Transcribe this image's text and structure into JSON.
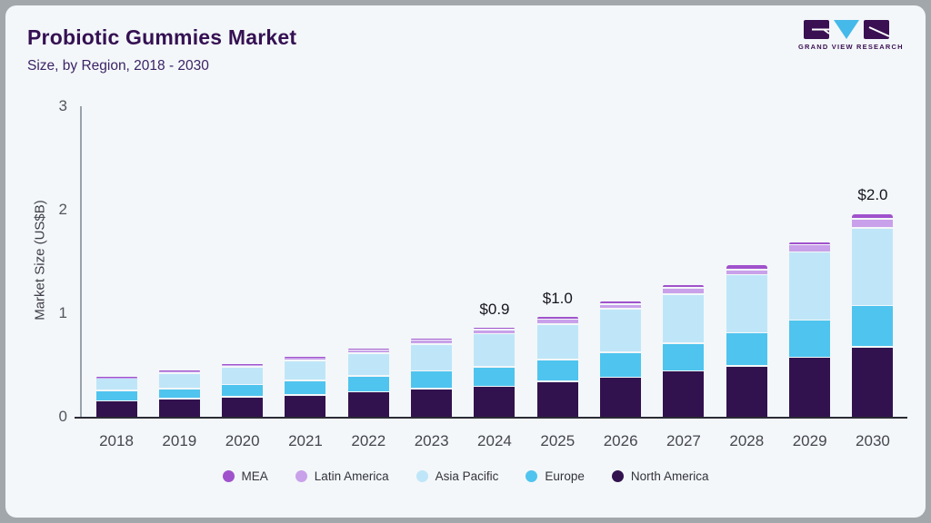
{
  "header": {
    "title": "Probiotic Gummies Market",
    "subtitle": "Size, by Region, 2018 - 2030",
    "logo_text": "GRAND VIEW RESEARCH"
  },
  "chart_data": {
    "type": "bar",
    "stacked": true,
    "title": "Probiotic Gummies Market Size, by Region, 2018 - 2030",
    "xlabel": "",
    "ylabel": "Market Size (US$B)",
    "ylim": [
      0,
      3
    ],
    "yticks": [
      0,
      1,
      2,
      3
    ],
    "grid": false,
    "legend_position": "bottom",
    "categories": [
      "2018",
      "2019",
      "2020",
      "2021",
      "2022",
      "2023",
      "2024",
      "2025",
      "2026",
      "2027",
      "2028",
      "2029",
      "2030"
    ],
    "series": [
      {
        "name": "North America",
        "color": "#32124e",
        "values": [
          0.16,
          0.18,
          0.2,
          0.22,
          0.25,
          0.28,
          0.3,
          0.35,
          0.39,
          0.45,
          0.5,
          0.58,
          0.68
        ]
      },
      {
        "name": "Europe",
        "color": "#4fc4ef",
        "values": [
          0.1,
          0.1,
          0.12,
          0.14,
          0.15,
          0.17,
          0.19,
          0.21,
          0.24,
          0.27,
          0.32,
          0.36,
          0.4
        ]
      },
      {
        "name": "Asia Pacific",
        "color": "#bfe6f8",
        "values": [
          0.12,
          0.15,
          0.17,
          0.19,
          0.22,
          0.26,
          0.32,
          0.34,
          0.42,
          0.47,
          0.56,
          0.66,
          0.75
        ]
      },
      {
        "name": "Latin America",
        "color": "#c9a1ea",
        "values": [
          0.015,
          0.02,
          0.025,
          0.03,
          0.035,
          0.04,
          0.04,
          0.05,
          0.045,
          0.06,
          0.05,
          0.07,
          0.09
        ]
      },
      {
        "name": "MEA",
        "color": "#a052cc",
        "values": [
          0.005,
          0.01,
          0.01,
          0.01,
          0.015,
          0.02,
          0.02,
          0.025,
          0.03,
          0.04,
          0.045,
          0.03,
          0.05
        ]
      }
    ],
    "legend_order": [
      "MEA",
      "Latin America",
      "Asia Pacific",
      "Europe",
      "North America"
    ],
    "bar_total_labels": {
      "2024": "$0.9",
      "2025": "$1.0",
      "2030": "$2.0"
    },
    "totals_approx": [
      0.4,
      0.46,
      0.53,
      0.59,
      0.67,
      0.77,
      0.87,
      0.98,
      1.13,
      1.29,
      1.48,
      1.7,
      1.97
    ]
  },
  "colors": {
    "page_background": "#a2a7ac",
    "card_background": "#f3f7f9",
    "title_text": "#351153",
    "axis_line": "#9aa3ab",
    "baseline": "#2b2b35",
    "logo_dark": "#3b1053",
    "logo_blue": "#45b9e9"
  }
}
